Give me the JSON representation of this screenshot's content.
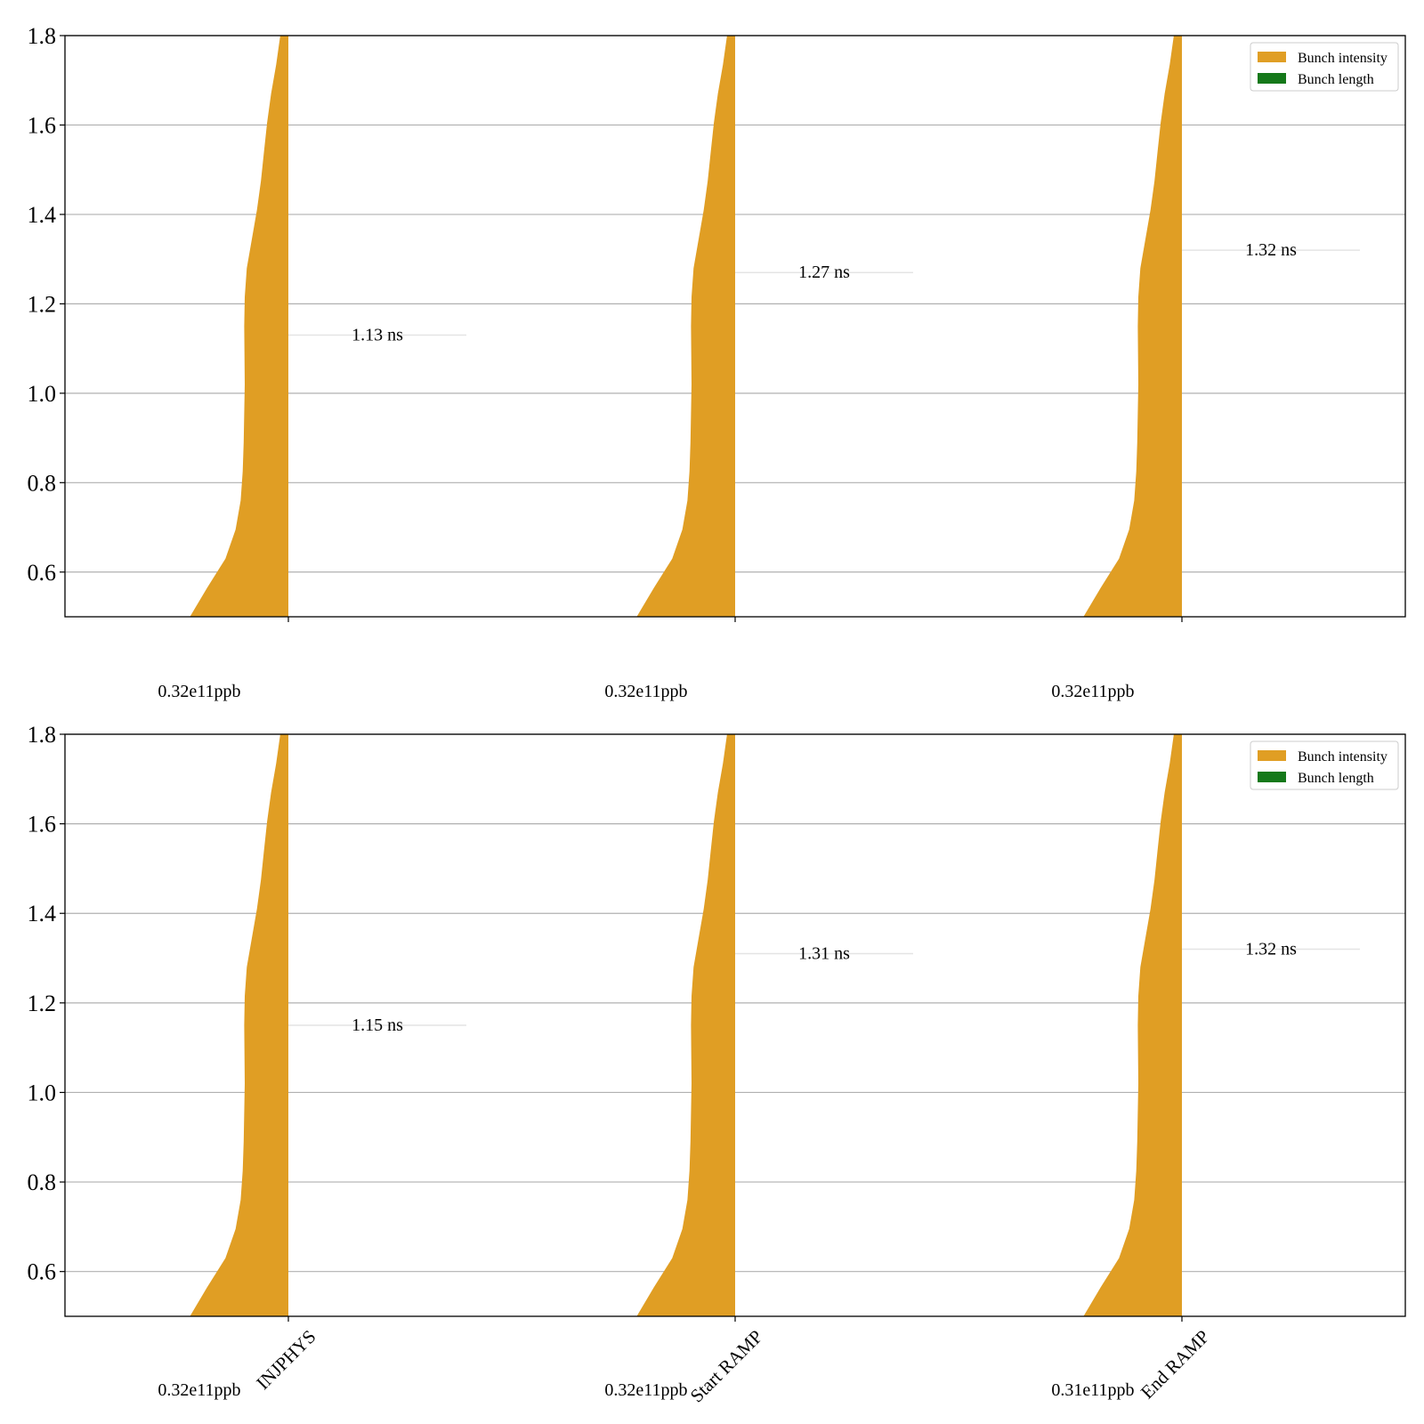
{
  "colors": {
    "intensity": "#e09e24",
    "length": "#15781a",
    "grid": "#b0b0b0",
    "axis": "#000000",
    "median_line": "#e4e4e4"
  },
  "legend": {
    "items": [
      {
        "label": "Bunch intensity",
        "color": "#e09e24"
      },
      {
        "label": "Bunch length",
        "color": "#15781a"
      }
    ]
  },
  "chart_data": [
    {
      "type": "violin",
      "panel": "top",
      "ylim": [
        0.5,
        1.8
      ],
      "yticks": [
        "0.6",
        "0.8",
        "1.0",
        "1.2",
        "1.4",
        "1.6",
        "1.8"
      ],
      "grid": true,
      "legend_position": "top-right",
      "categories": [
        "",
        "",
        ""
      ],
      "series": [
        {
          "name": "Bunch intensity",
          "labels": [
            "0.32e11ppb",
            "0.32e11ppb",
            "0.32e11ppb"
          ]
        },
        {
          "name": "Bunch length",
          "labels": [
            "1.13 ns",
            "1.27 ns",
            "1.32 ns"
          ],
          "values": [
            1.13,
            1.27,
            1.32
          ]
        }
      ]
    },
    {
      "type": "violin",
      "panel": "bottom",
      "ylim": [
        0.5,
        1.8
      ],
      "yticks": [
        "0.6",
        "0.8",
        "1.0",
        "1.2",
        "1.4",
        "1.6",
        "1.8"
      ],
      "grid": true,
      "legend_position": "top-right",
      "categories": [
        "INJPHYS",
        "Start RAMP",
        "End RAMP"
      ],
      "series": [
        {
          "name": "Bunch intensity",
          "labels": [
            "0.32e11ppb",
            "0.32e11ppb",
            "0.31e11ppb"
          ]
        },
        {
          "name": "Bunch length",
          "labels": [
            "1.15 ns",
            "1.31 ns",
            "1.32 ns"
          ],
          "values": [
            1.15,
            1.31,
            1.32
          ]
        }
      ]
    }
  ]
}
